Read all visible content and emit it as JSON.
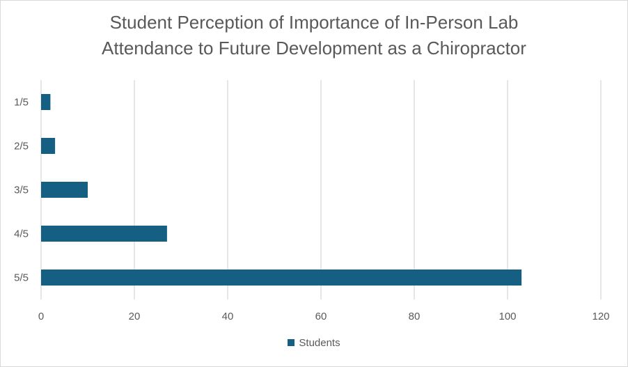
{
  "chart_data": {
    "type": "bar",
    "orientation": "horizontal",
    "title_line1": "Student Perception of Importance of In-Person Lab",
    "title_line2": "Attendance to Future Development as a Chiropractor",
    "categories": [
      "1/5",
      "2/5",
      "3/5",
      "4/5",
      "5/5"
    ],
    "series": [
      {
        "name": "Students",
        "values": [
          2,
          3,
          10,
          27,
          103
        ],
        "color": "#156082"
      }
    ],
    "xlim": [
      0,
      120
    ],
    "x_ticks": [
      "0",
      "20",
      "40",
      "60",
      "80",
      "100",
      "120"
    ],
    "grid": true,
    "legend_position": "bottom",
    "xlabel": "",
    "ylabel": ""
  }
}
